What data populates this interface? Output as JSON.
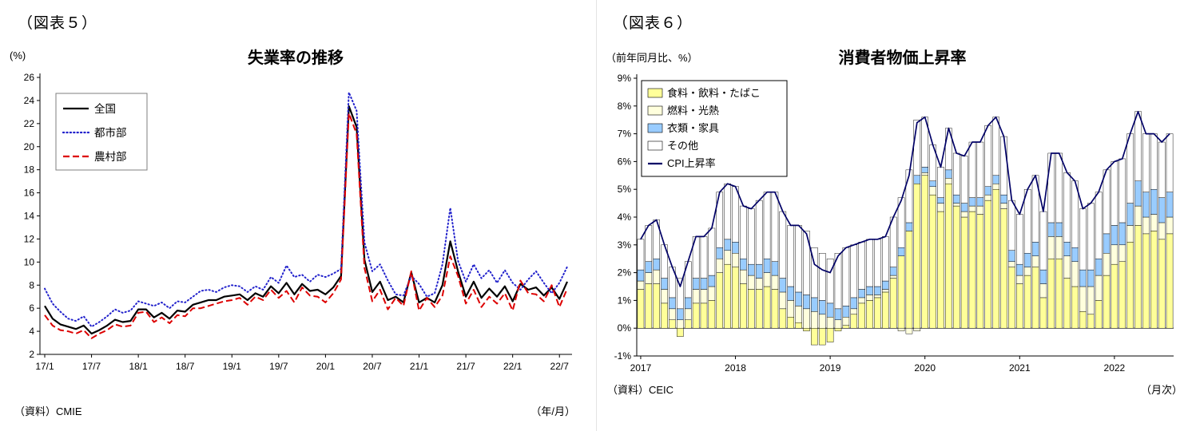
{
  "left_panel": {
    "figure_label": "（図表５）",
    "chart_title": "失業率の推移",
    "y_unit": "(%)",
    "x_unit": "（年/月）",
    "source": "（資料）CMIE"
  },
  "right_panel": {
    "figure_label": "（図表６）",
    "chart_title": "消費者物価上昇率",
    "y_unit": "（前年同月比、%）",
    "x_unit": "（月次）",
    "source": "（資料）CEIC"
  },
  "chart_data": [
    {
      "type": "line",
      "title": "失業率の推移",
      "ylabel": "(%)",
      "xlabel": "（年/月）",
      "ylim": [
        2,
        26
      ],
      "ytick_step": 2,
      "grid": false,
      "legend_position": "top-left",
      "x_tick_labels": [
        "17/1",
        "17/7",
        "18/1",
        "18/7",
        "19/1",
        "19/7",
        "20/1",
        "20/7",
        "21/1",
        "21/7",
        "22/1",
        "22/7"
      ],
      "x_tick_indices": [
        0,
        6,
        12,
        18,
        24,
        30,
        36,
        42,
        48,
        54,
        60,
        66
      ],
      "x_range_note": "monthly 2017/1 - 2022/8",
      "series": [
        {
          "name": "全国",
          "style": "solid",
          "color": "#000000",
          "values": [
            6.2,
            5.1,
            4.6,
            4.4,
            4.2,
            4.5,
            3.8,
            4.1,
            4.5,
            5.0,
            4.8,
            4.9,
            5.9,
            5.9,
            5.2,
            5.6,
            5.1,
            5.8,
            5.7,
            6.3,
            6.5,
            6.7,
            6.7,
            7.0,
            7.1,
            7.2,
            6.7,
            7.3,
            7.0,
            7.9,
            7.3,
            8.2,
            7.2,
            8.1,
            7.5,
            7.6,
            7.2,
            7.8,
            8.8,
            23.5,
            21.7,
            10.2,
            7.4,
            8.3,
            6.7,
            7.0,
            6.5,
            9.1,
            6.5,
            6.9,
            6.5,
            8.0,
            11.8,
            9.2,
            7.0,
            8.3,
            6.9,
            7.7,
            7.0,
            7.9,
            6.6,
            8.1,
            7.6,
            7.8,
            7.1,
            7.8,
            6.8,
            8.3
          ]
        },
        {
          "name": "都市部",
          "style": "dotted",
          "color": "#2222CC",
          "values": [
            7.7,
            6.4,
            5.7,
            5.1,
            4.9,
            5.3,
            4.4,
            4.8,
            5.3,
            5.9,
            5.6,
            5.8,
            6.6,
            6.4,
            6.2,
            6.5,
            6.0,
            6.6,
            6.5,
            7.0,
            7.5,
            7.6,
            7.4,
            7.8,
            8.0,
            7.9,
            7.4,
            7.9,
            7.6,
            8.7,
            8.2,
            9.7,
            8.7,
            8.9,
            8.3,
            8.9,
            8.7,
            9.0,
            9.4,
            24.7,
            23.1,
            11.7,
            9.2,
            9.8,
            8.4,
            7.2,
            7.1,
            8.8,
            8.1,
            7.0,
            7.3,
            9.8,
            14.7,
            10.1,
            8.3,
            9.8,
            8.6,
            9.3,
            8.2,
            9.3,
            8.2,
            7.6,
            8.5,
            9.2,
            8.2,
            7.3,
            8.2,
            9.6
          ]
        },
        {
          "name": "農村部",
          "style": "dashed",
          "color": "#DD0000",
          "values": [
            5.4,
            4.5,
            4.1,
            4.0,
            3.8,
            4.1,
            3.4,
            3.8,
            4.1,
            4.6,
            4.4,
            4.5,
            5.6,
            5.7,
            4.8,
            5.2,
            4.7,
            5.4,
            5.3,
            6.0,
            6.0,
            6.2,
            6.4,
            6.6,
            6.7,
            6.9,
            6.3,
            7.0,
            6.7,
            7.6,
            6.9,
            7.5,
            6.5,
            7.8,
            7.1,
            7.0,
            6.5,
            7.3,
            8.5,
            22.9,
            21.1,
            9.5,
            6.6,
            7.6,
            5.9,
            6.9,
            6.2,
            9.2,
            5.8,
            6.9,
            6.1,
            7.1,
            10.5,
            8.8,
            6.4,
            7.6,
            6.1,
            7.0,
            6.4,
            7.3,
            5.8,
            8.4,
            7.3,
            7.2,
            6.6,
            8.0,
            6.1,
            7.7
          ]
        }
      ]
    },
    {
      "type": "stacked-bar-line",
      "title": "消費者物価上昇率",
      "ylabel": "（前年同月比、%）",
      "xlabel": "（月次）",
      "ylim": [
        -1,
        9
      ],
      "ytick_step": 1,
      "grid": false,
      "legend_position": "top-left",
      "year_labels": [
        "2017",
        "2018",
        "2019",
        "2020",
        "2021",
        "2022"
      ],
      "year_tick_indices": [
        0,
        12,
        24,
        36,
        48,
        60
      ],
      "x_range_note": "monthly 2017/1 - 2022/8, stacked contribution to CPI (pt)",
      "series": [
        {
          "name": "食料・飲料・たばこ",
          "color": "#FFFF99",
          "values": [
            1.4,
            1.6,
            1.6,
            0.9,
            0.3,
            -0.3,
            0.3,
            0.9,
            0.9,
            1.0,
            2.0,
            2.3,
            2.2,
            1.6,
            1.4,
            1.4,
            1.5,
            1.4,
            0.7,
            0.4,
            0.2,
            -0.1,
            -0.6,
            -0.6,
            -0.5,
            -0.1,
            0.1,
            0.5,
            0.9,
            1.0,
            1.1,
            1.3,
            1.8,
            2.6,
            3.5,
            5.2,
            5.5,
            4.8,
            4.2,
            5.2,
            4.4,
            4.0,
            4.2,
            4.1,
            4.6,
            5.0,
            4.3,
            2.2,
            1.6,
            1.9,
            2.2,
            1.1,
            2.5,
            2.5,
            1.8,
            1.5,
            0.6,
            0.5,
            1.0,
            1.9,
            2.3,
            2.4,
            3.1,
            3.7,
            3.4,
            3.5,
            3.2,
            3.4
          ]
        },
        {
          "name": "燃料・光熱",
          "color": "#FFFFDD",
          "values": [
            0.3,
            0.4,
            0.5,
            0.5,
            0.4,
            0.3,
            0.4,
            0.5,
            0.5,
            0.5,
            0.5,
            0.5,
            0.5,
            0.5,
            0.5,
            0.4,
            0.5,
            0.5,
            0.6,
            0.6,
            0.6,
            0.7,
            0.6,
            0.5,
            0.4,
            0.3,
            0.3,
            0.2,
            0.2,
            0.2,
            0.1,
            0.1,
            0.1,
            -0.1,
            -0.2,
            -0.1,
            0.1,
            0.3,
            0.3,
            0.2,
            0.1,
            0.2,
            0.2,
            0.3,
            0.2,
            0.2,
            0.2,
            0.2,
            0.3,
            0.3,
            0.4,
            0.5,
            0.8,
            0.8,
            0.8,
            0.9,
            0.9,
            1.0,
            0.9,
            0.8,
            0.7,
            0.6,
            0.6,
            0.7,
            0.6,
            0.6,
            0.6,
            0.6
          ]
        },
        {
          "name": "衣類・家具",
          "color": "#99CCFF",
          "values": [
            0.4,
            0.4,
            0.4,
            0.4,
            0.4,
            0.4,
            0.4,
            0.4,
            0.4,
            0.4,
            0.4,
            0.4,
            0.4,
            0.4,
            0.4,
            0.5,
            0.5,
            0.5,
            0.5,
            0.5,
            0.5,
            0.5,
            0.5,
            0.5,
            0.5,
            0.4,
            0.4,
            0.4,
            0.3,
            0.3,
            0.3,
            0.3,
            0.3,
            0.3,
            0.3,
            0.3,
            0.2,
            0.2,
            0.2,
            0.3,
            0.3,
            0.3,
            0.3,
            0.3,
            0.3,
            0.3,
            0.3,
            0.4,
            0.4,
            0.5,
            0.5,
            0.5,
            0.5,
            0.5,
            0.5,
            0.5,
            0.6,
            0.6,
            0.6,
            0.7,
            0.7,
            0.8,
            0.8,
            0.9,
            0.9,
            0.9,
            0.9,
            0.9
          ]
        },
        {
          "name": "その他",
          "color": "#FFFFFF",
          "values": [
            1.1,
            1.3,
            1.4,
            1.2,
            1.1,
            1.1,
            1.3,
            1.5,
            1.5,
            1.7,
            2.0,
            2.0,
            2.0,
            1.9,
            2.0,
            2.3,
            2.4,
            2.5,
            2.4,
            2.2,
            2.4,
            2.3,
            1.8,
            1.7,
            1.6,
            2.0,
            2.1,
            1.9,
            1.7,
            1.7,
            1.7,
            1.6,
            1.8,
            1.8,
            1.9,
            2.0,
            1.8,
            1.3,
            1.1,
            1.5,
            1.5,
            1.7,
            2.0,
            2.0,
            2.2,
            2.1,
            2.1,
            1.8,
            1.8,
            2.3,
            2.4,
            2.1,
            2.5,
            2.5,
            2.5,
            2.4,
            2.2,
            2.4,
            2.4,
            2.3,
            2.3,
            2.3,
            2.5,
            2.5,
            2.1,
            2.0,
            2.0,
            2.1
          ]
        }
      ],
      "line": {
        "name": "CPI上昇率",
        "color": "#000066",
        "values": [
          3.2,
          3.7,
          3.9,
          3.0,
          2.2,
          1.5,
          2.4,
          3.3,
          3.3,
          3.6,
          4.9,
          5.2,
          5.1,
          4.4,
          4.3,
          4.6,
          4.9,
          4.9,
          4.2,
          3.7,
          3.7,
          3.4,
          2.3,
          2.1,
          2.0,
          2.6,
          2.9,
          3.0,
          3.1,
          3.2,
          3.2,
          3.3,
          4.0,
          4.6,
          5.5,
          7.4,
          7.6,
          6.6,
          5.8,
          7.2,
          6.3,
          6.2,
          6.7,
          6.7,
          7.3,
          7.6,
          6.9,
          4.6,
          4.1,
          5.0,
          5.5,
          4.2,
          6.3,
          6.3,
          5.6,
          5.3,
          4.3,
          4.5,
          4.9,
          5.7,
          6.0,
          6.1,
          7.0,
          7.8,
          7.0,
          7.0,
          6.7,
          7.0
        ]
      }
    }
  ]
}
